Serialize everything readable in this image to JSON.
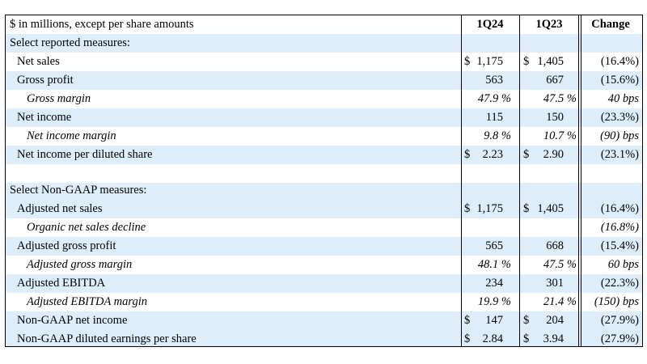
{
  "header": {
    "label": "$ in millions, except per share amounts",
    "col1": "1Q24",
    "col2": "1Q23",
    "col3": "Change"
  },
  "sections": {
    "reported": "Select reported measures:",
    "nongaap": "Select Non-GAAP measures:"
  },
  "rows": {
    "net_sales": {
      "label": "Net sales",
      "s1": "$",
      "v1": "1,175",
      "s2": "$",
      "v2": "1,405",
      "chg": "(16.4%)"
    },
    "gross_profit": {
      "label": "Gross profit",
      "v1": "563",
      "v2": "667",
      "chg": "(15.6%)"
    },
    "gross_margin": {
      "label": "Gross margin",
      "v1": "47.9 %",
      "v2": "47.5 %",
      "chg": "40 bps"
    },
    "net_income": {
      "label": "Net income",
      "v1": "115",
      "v2": "150",
      "chg": "(23.3%)"
    },
    "net_income_margin": {
      "label": "Net income margin",
      "v1": "9.8 %",
      "v2": "10.7 %",
      "chg": "(90) bps"
    },
    "eps": {
      "label": "Net income per diluted share",
      "s1": "$",
      "v1": "2.23",
      "s2": "$",
      "v2": "2.90",
      "chg": "(23.1%)"
    },
    "adj_net_sales": {
      "label": "Adjusted net sales",
      "s1": "$",
      "v1": "1,175",
      "s2": "$",
      "v2": "1,405",
      "chg": "(16.4%)"
    },
    "organic": {
      "label": "Organic net sales decline",
      "chg": "(16.8%)"
    },
    "adj_gross_profit": {
      "label": "Adjusted gross profit",
      "v1": "565",
      "v2": "668",
      "chg": "(15.4%)"
    },
    "adj_gross_margin": {
      "label": "Adjusted gross margin",
      "v1": "48.1 %",
      "v2": "47.5 %",
      "chg": "60 bps"
    },
    "adj_ebitda": {
      "label": "Adjusted EBITDA",
      "v1": "234",
      "v2": "301",
      "chg": "(22.3%)"
    },
    "adj_ebitda_margin": {
      "label": "Adjusted EBITDA margin",
      "v1": "19.9 %",
      "v2": "21.4 %",
      "chg": "(150) bps"
    },
    "ng_net_income": {
      "label": "Non-GAAP net income",
      "s1": "$",
      "v1": "147",
      "s2": "$",
      "v2": "204",
      "chg": "(27.9%)"
    },
    "ng_eps": {
      "label": "Non-GAAP diluted earnings per share",
      "s1": "$",
      "v1": "2.84",
      "s2": "$",
      "v2": "3.94",
      "chg": "(27.9%)"
    }
  }
}
